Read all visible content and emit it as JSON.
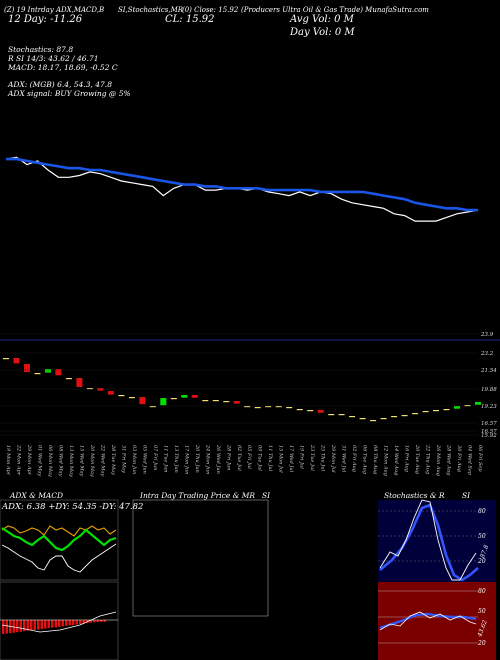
{
  "header": {
    "line1": [
      "(Z) 19 Intrday ADX,MACD,B",
      "SI,Stochastics,MR",
      "(0) Close: 15.92",
      "(Producers Ultra Oil & Gas Trade) MunafaSutra.com"
    ],
    "line2_left": "12 Day: -11.26",
    "line2_mid": "CL: 15.92",
    "vol_label": "Avg Vol: 0 M",
    "dayvol_label": "Day Vol: 0 M"
  },
  "indicators": {
    "stoch": "Stochastics: 87.8",
    "rsi": "R        SI 14/3: 43.62 / 46.71",
    "macd": "MACD: 18.17, 18.69, -0.52  C",
    "adx": "ADX:                        (MGB) 6.4, 54.3, 47.8",
    "adx_signal": "ADX signal:                   BUY Growing @ 5%"
  },
  "price_axis": [
    "23.9",
    "23.2",
    "21.54",
    "19.88",
    "19.23",
    "16.57",
    "16.57",
    "15.92"
  ],
  "dates": [
    "19 Mon Apr",
    "22 Mon Apr",
    "29 Mon Apr",
    "01 Wed May",
    "06 Mon May",
    "08 Wed May",
    "13 Mon May",
    "15 Wed May",
    "20 Mon May",
    "22 Wed May",
    "28 Tue May",
    "31 Fri May",
    "03 Mon Jun",
    "05 Wed Jun",
    "07 Fri Jun",
    "11 Tue Jun",
    "13 Thu Jun",
    "17 Mon Jun",
    "20 Thu Jun",
    "24 Mon Jun",
    "26 Wed Jun",
    "28 Fri Jun",
    "02 Tue Jul",
    "05 Fri Jul",
    "09 Tue Jul",
    "11 Thu Jul",
    "15 Mon Jul",
    "17 Wed Jul",
    "19 Fri Jul",
    "23 Tue Jul",
    "25 Thu Jul",
    "29 Mon Jul",
    "31 Wed Jul",
    "02 Fri Aug",
    "06 Tue Aug",
    "08 Thu Aug",
    "12 Mon Aug",
    "14 Wed Aug",
    "16 Fri Aug",
    "20 Tue Aug",
    "22 Thu Aug",
    "26 Mon Aug",
    "28 Wed Aug",
    "30 Fri Aug",
    "04 Wed Sep",
    "06 Fri Sep"
  ],
  "panels": {
    "adx_title": "ADX  & MACD",
    "adx_values": "ADX: 6.38  +DY: 54.35  -DY: 47.82",
    "intraday_title": "Intra  Day Trading Price  & MR",
    "intraday_si": "SI",
    "stoch_title": "Stochastics & R",
    "stoch_si": "SI",
    "stoch_axis": [
      "80",
      "50",
      "20"
    ],
    "stoch_last": "87.8",
    "rsi_axis": [
      "80",
      "50",
      "20"
    ],
    "rsi_last": "43.62"
  },
  "colors": {
    "price": "#ffffff",
    "ma": "#1a56e6",
    "up": "#00e000",
    "down": "#e01010",
    "flat": "#f0e070",
    "blue_line": "#3355ff",
    "rsi_bg": "#7a0000",
    "stoch_bg": "#00003a"
  },
  "chart_data": {
    "type": "line",
    "title": "",
    "series": [
      {
        "name": "",
        "values": [
          20.0,
          20.1,
          19.7,
          19.9,
          19.4,
          19.0,
          19.0,
          19.1,
          19.3,
          19.2,
          19.0,
          18.8,
          18.7,
          18.6,
          18.5,
          18.0,
          18.4,
          18.6,
          18.6,
          18.3,
          18.3,
          18.4,
          18.4,
          18.3,
          18.4,
          18.2,
          18.1,
          18.0,
          18.2,
          18.0,
          18.2,
          18.1,
          17.8,
          17.6,
          17.5,
          17.4,
          17.3,
          17.0,
          16.9,
          16.6,
          16.6,
          16.6,
          16.8,
          17.0,
          17.1,
          17.2
        ]
      },
      {
        "name": "",
        "values": [
          20.0,
          20.0,
          19.9,
          19.8,
          19.7,
          19.6,
          19.5,
          19.5,
          19.4,
          19.4,
          19.3,
          19.2,
          19.1,
          19.0,
          18.9,
          18.8,
          18.7,
          18.6,
          18.6,
          18.5,
          18.5,
          18.4,
          18.4,
          18.4,
          18.4,
          18.3,
          18.3,
          18.3,
          18.3,
          18.3,
          18.2,
          18.2,
          18.2,
          18.2,
          18.2,
          18.1,
          18.0,
          17.9,
          17.8,
          17.6,
          17.5,
          17.4,
          17.3,
          17.3,
          17.2,
          17.2
        ]
      }
    ],
    "candles_value": [
      23.2,
      22.6,
      21.7,
      21.7,
      22.1,
      21.4,
      21.2,
      20.2,
      20.2,
      19.9,
      19.5,
      19.5,
      19.3,
      18.5,
      18.4,
      19.2,
      19.2,
      19.5,
      19.2,
      19.0,
      19.0,
      18.9,
      18.6,
      18.4,
      18.3,
      18.4,
      18.4,
      18.3,
      18.1,
      18.0,
      17.7,
      17.6,
      17.6,
      17.4,
      17.2,
      17.0,
      17.2,
      17.4,
      17.5,
      17.7,
      17.9,
      18.0,
      18.1,
      18.4,
      18.5,
      18.8
    ],
    "ylim": [
      15.5,
      24.0
    ]
  }
}
